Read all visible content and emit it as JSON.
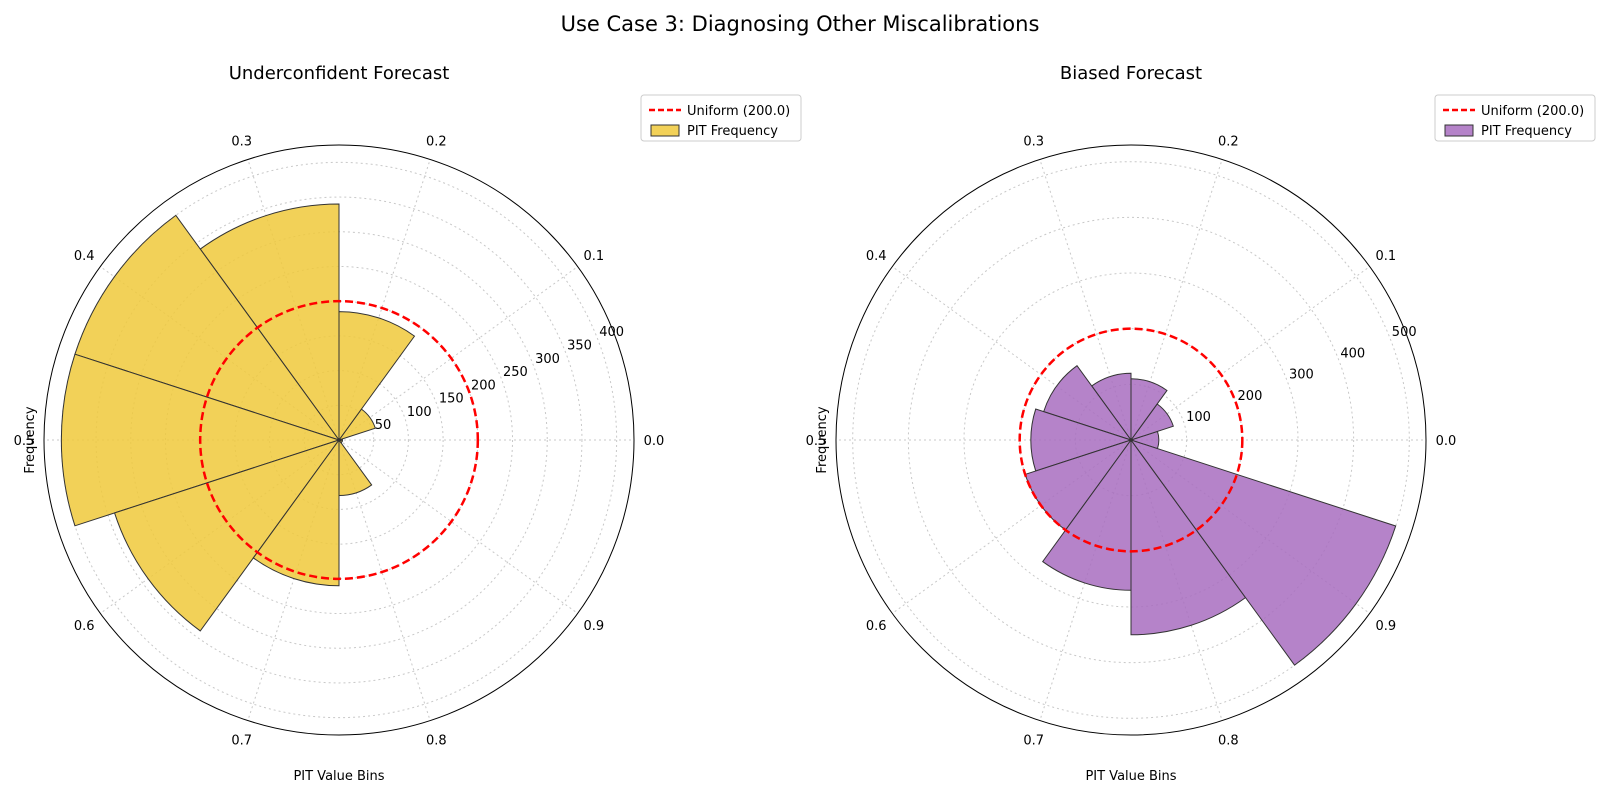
{
  "figure": {
    "title": "Use Case 3: Diagnosing Other Miscalibrations"
  },
  "chart_data": [
    {
      "type": "polar-bar",
      "title": "Underconfident Forecast",
      "xlabel": "PIT Value Bins",
      "ylabel": "Frequency",
      "angular_ticks": [
        "0.0",
        "0.1",
        "0.2",
        "0.3",
        "0.4",
        "0.5",
        "0.6",
        "0.7",
        "0.8",
        "0.9"
      ],
      "bins": [
        "0.0-0.1",
        "0.1-0.2",
        "0.2-0.3",
        "0.3-0.4",
        "0.4-0.5",
        "0.5-0.6",
        "0.6-0.7",
        "0.7-0.8",
        "0.8-0.9",
        "0.9-1.0"
      ],
      "values": [
        5,
        55,
        185,
        340,
        400,
        400,
        340,
        210,
        80,
        5
      ],
      "radial_ticks": [
        "50",
        "100",
        "150",
        "200",
        "250",
        "300",
        "350",
        "400"
      ],
      "radial_tick_values": [
        50,
        100,
        150,
        200,
        250,
        300,
        350,
        400
      ],
      "rmax": 425,
      "grid": true,
      "uniform_value": 200.0,
      "legend": {
        "position": "upper-right-outside",
        "entries": [
          "Uniform (200.0)",
          "PIT Frequency"
        ]
      },
      "colors": {
        "bar": "#f0c93b",
        "bar_edge": "#333333",
        "uniform_line": "#ff0000"
      }
    },
    {
      "type": "polar-bar",
      "title": "Biased Forecast",
      "xlabel": "PIT Value Bins",
      "ylabel": "Frequency",
      "angular_ticks": [
        "0.0",
        "0.1",
        "0.2",
        "0.3",
        "0.4",
        "0.5",
        "0.6",
        "0.7",
        "0.8",
        "0.9"
      ],
      "bins": [
        "0.0-0.1",
        "0.1-0.2",
        "0.2-0.3",
        "0.3-0.4",
        "0.4-0.5",
        "0.5-0.6",
        "0.6-0.7",
        "0.7-0.8",
        "0.8-0.9",
        "0.9-1.0"
      ],
      "values": [
        50,
        80,
        110,
        120,
        165,
        180,
        200,
        270,
        350,
        500
      ],
      "radial_ticks": [
        "100",
        "200",
        "300",
        "400",
        "500"
      ],
      "radial_tick_values": [
        100,
        200,
        300,
        400,
        500
      ],
      "rmax": 530,
      "grid": true,
      "uniform_value": 200.0,
      "legend": {
        "position": "upper-right-outside",
        "entries": [
          "Uniform (200.0)",
          "PIT Frequency"
        ]
      },
      "colors": {
        "bar": "#a86dc0",
        "bar_edge": "#333333",
        "uniform_line": "#ff0000"
      }
    }
  ]
}
